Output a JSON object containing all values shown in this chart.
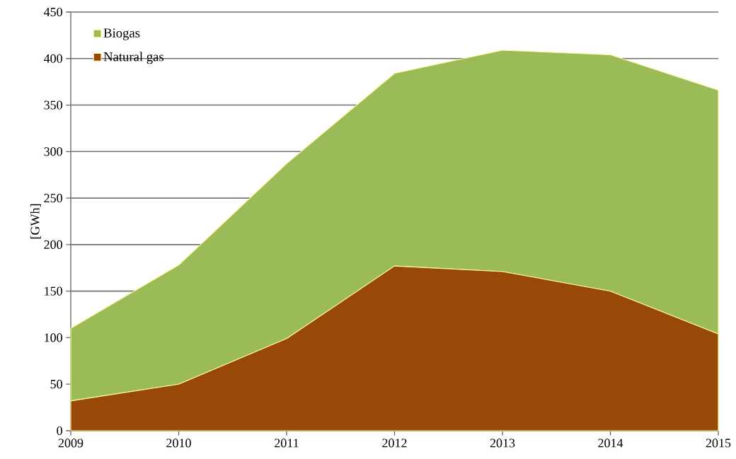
{
  "chart_data": {
    "type": "area",
    "stacked": true,
    "ylabel": "[GWh]",
    "x": [
      2009,
      2010,
      2011,
      2012,
      2013,
      2014,
      2015
    ],
    "series": [
      {
        "name": "Natural gas",
        "color": "#984807",
        "values": [
          32,
          50,
          99,
          177,
          171,
          150,
          104
        ]
      },
      {
        "name": "Biogas",
        "color": "#9bbb59",
        "values": [
          78,
          128,
          188,
          207,
          238,
          254,
          262
        ]
      }
    ],
    "xlim": [
      2009,
      2015
    ],
    "xticks": [
      2009,
      2010,
      2011,
      2012,
      2013,
      2014,
      2015
    ],
    "ylim": [
      0,
      450
    ],
    "yticks": [
      0,
      50,
      100,
      150,
      200,
      250,
      300,
      350,
      400,
      450
    ],
    "grid": "y",
    "legend": "top left"
  }
}
